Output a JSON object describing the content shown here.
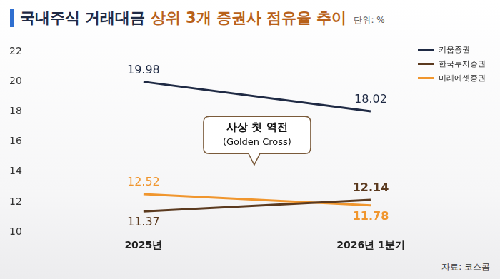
{
  "chart_data": {
    "type": "line",
    "title": "국내주식 거래대금 상위 3개 증권사 점유율 추이",
    "unit": "단위: %",
    "source": "자료: 코스콤",
    "annotations": [
      "사상 첫 역전",
      "(Golden Cross)"
    ],
    "categories": [
      "2025년",
      "2026년 1분기"
    ],
    "series": [
      {
        "name": "키움증권",
        "color": "#1f2a44",
        "values": [
          19.98,
          18.02
        ]
      },
      {
        "name": "한국투자증권",
        "color": "#5b3a1f",
        "values": [
          11.37,
          12.14
        ]
      },
      {
        "name": "미래에셋증권",
        "color": "#f0962e",
        "values": [
          12.52,
          11.78
        ]
      }
    ],
    "ylim": [
      10,
      22
    ],
    "yticks": [
      10,
      12,
      14,
      16,
      18,
      20,
      22
    ],
    "grid": false,
    "legend": "upper right",
    "data_labels": true
  }
}
